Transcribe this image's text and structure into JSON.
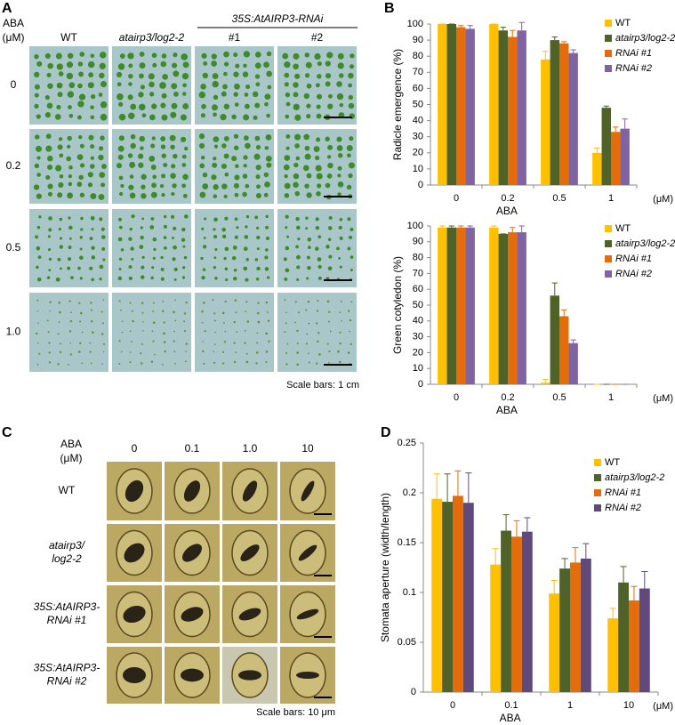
{
  "panel_labels": [
    "A",
    "B",
    "C",
    "D"
  ],
  "photos_a": {
    "row_header": [
      "ABA",
      "(μM)"
    ],
    "group_label": "35S:AtAIRP3-RNAi",
    "columns": [
      "WT",
      "atairp3/log2-2",
      "#1",
      "#2"
    ],
    "rows": [
      "0",
      "0.2",
      "0.5",
      "1.0"
    ],
    "scale_note": "Scale bars: 1 cm"
  },
  "photos_c": {
    "row_header": [
      "ABA",
      "(μM)"
    ],
    "columns": [
      "0",
      "0.1",
      "1.0",
      "10"
    ],
    "rows": [
      [
        "WT"
      ],
      [
        "atairp3/",
        "log2-2"
      ],
      [
        "35S:AtAIRP3-",
        "RNAi #1"
      ],
      [
        "35S:AtAIRP3-",
        "RNAi #2"
      ]
    ],
    "scale_note": "Scale bars: 10 μm"
  },
  "chart_data": [
    {
      "type": "bar",
      "ylabel": "Radicle emergence (%)",
      "xlabel": "ABA",
      "x_unit": "(μM)",
      "categories": [
        "0",
        "0.2",
        "0.5",
        "1"
      ],
      "series": [
        {
          "name": "WT",
          "color": "#ffc000",
          "values": [
            100,
            100,
            78,
            20
          ],
          "errors": [
            0,
            0,
            5,
            3
          ]
        },
        {
          "name": "atairp3/log2-2",
          "color": "#4f6228",
          "values": [
            100,
            96,
            90,
            48
          ],
          "errors": [
            0,
            2,
            2,
            1
          ]
        },
        {
          "name": "RNAi #1",
          "color": "#e46c0a",
          "values": [
            98,
            92,
            88,
            33
          ],
          "errors": [
            1,
            4,
            1,
            3
          ]
        },
        {
          "name": "RNAi #2",
          "color": "#8064a2",
          "values": [
            97,
            96,
            82,
            35
          ],
          "errors": [
            2,
            5,
            2,
            6
          ]
        }
      ],
      "ylim": [
        0,
        100
      ],
      "yticks": [
        0,
        10,
        20,
        30,
        40,
        50,
        60,
        70,
        80,
        90,
        100
      ],
      "grid": false,
      "legend": "upper right"
    },
    {
      "type": "bar",
      "ylabel": "Green cotyledon (%)",
      "xlabel": "ABA",
      "x_unit": "(μM)",
      "categories": [
        "0",
        "0.2",
        "0.5",
        "1"
      ],
      "series": [
        {
          "name": "WT",
          "color": "#ffc000",
          "values": [
            99,
            99,
            1,
            0
          ],
          "errors": [
            1,
            1,
            2,
            0
          ]
        },
        {
          "name": "atairp3/log2-2",
          "color": "#4f6228",
          "values": [
            99,
            95,
            56,
            0
          ],
          "errors": [
            1,
            0,
            8,
            0
          ]
        },
        {
          "name": "RNAi #1",
          "color": "#e46c0a",
          "values": [
            99,
            96,
            43,
            0
          ],
          "errors": [
            1,
            3,
            4,
            0
          ]
        },
        {
          "name": "RNAi #2",
          "color": "#8064a2",
          "values": [
            99,
            96,
            26,
            0
          ],
          "errors": [
            1,
            4,
            2,
            0
          ]
        }
      ],
      "ylim": [
        0,
        100
      ],
      "yticks": [
        0,
        10,
        20,
        30,
        40,
        50,
        60,
        70,
        80,
        90,
        100
      ],
      "grid": false,
      "legend": "upper right"
    },
    {
      "type": "bar",
      "ylabel": "Stomata aperture (width/length)",
      "xlabel": "ABA",
      "x_unit": "(μM)",
      "categories": [
        "0",
        "0.1",
        "1",
        "10"
      ],
      "series": [
        {
          "name": "WT",
          "color": "#ffc000",
          "values": [
            0.194,
            0.128,
            0.099,
            0.074
          ],
          "errors": [
            0.025,
            0.016,
            0.013,
            0.01
          ]
        },
        {
          "name": "atairp3/log2-2",
          "color": "#4f6228",
          "values": [
            0.191,
            0.162,
            0.124,
            0.11
          ],
          "errors": [
            0.028,
            0.016,
            0.01,
            0.016
          ]
        },
        {
          "name": "RNAi #1",
          "color": "#e46c0a",
          "values": [
            0.197,
            0.156,
            0.13,
            0.092
          ],
          "errors": [
            0.025,
            0.016,
            0.015,
            0.014
          ]
        },
        {
          "name": "RNAi #2",
          "color": "#604a7b",
          "values": [
            0.19,
            0.161,
            0.134,
            0.104
          ],
          "errors": [
            0.03,
            0.014,
            0.015,
            0.017
          ]
        }
      ],
      "ylim": [
        0,
        0.25
      ],
      "yticks": [
        0,
        0.05,
        0.1,
        0.15,
        0.2,
        0.25
      ],
      "grid": false,
      "legend": "upper right"
    }
  ]
}
